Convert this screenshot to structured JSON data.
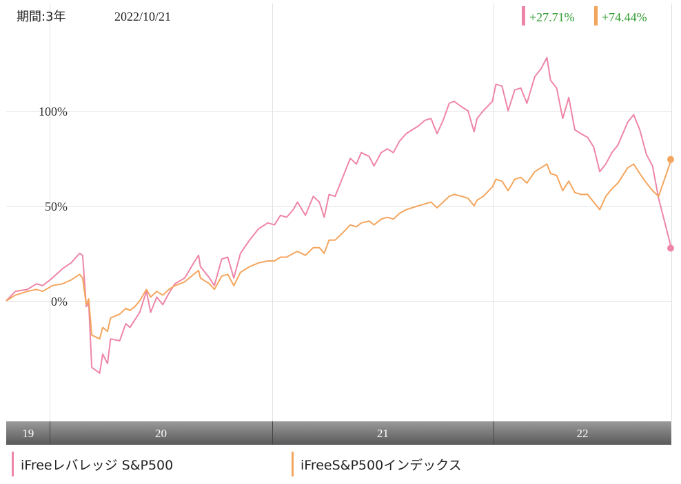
{
  "header": {
    "period_label": "期間:3年",
    "date_label": "2022/10/21",
    "badges": [
      {
        "value": "+27.71%",
        "color": "#ef85a6",
        "text_color": "#2e9a2e"
      },
      {
        "value": "+74.44%",
        "color": "#f4a55d",
        "text_color": "#2e9a2e"
      }
    ]
  },
  "legend": [
    {
      "name": "iFreeレバレッジ S&P500",
      "color": "#ef85a6"
    },
    {
      "name": "iFreeS&P500インデックス",
      "color": "#f4a55d"
    }
  ],
  "chart_data": {
    "type": "line",
    "ylim": [
      -65,
      147
    ],
    "y_ticks": [
      {
        "value": 0,
        "label": "0%"
      },
      {
        "value": 50,
        "label": "50%"
      },
      {
        "value": 100,
        "label": "100%"
      }
    ],
    "x_range": [
      "2019-10-21",
      "2022-10-21"
    ],
    "x_year_labels": [
      "19",
      "20",
      "21",
      "22"
    ],
    "grid": true,
    "series": [
      {
        "name": "iFreeレバレッジ S&P500",
        "color": "#ef85a6",
        "end_value": 27.71,
        "points": [
          [
            "2019-10-21",
            0
          ],
          [
            "2019-11-05",
            5
          ],
          [
            "2019-11-25",
            6
          ],
          [
            "2019-12-10",
            9
          ],
          [
            "2019-12-20",
            8
          ],
          [
            "2020-01-05",
            12
          ],
          [
            "2020-01-22",
            17
          ],
          [
            "2020-02-05",
            20
          ],
          [
            "2020-02-19",
            25
          ],
          [
            "2020-02-24",
            24
          ],
          [
            "2020-03-01",
            -3
          ],
          [
            "2020-03-05",
            -1
          ],
          [
            "2020-03-10",
            -35
          ],
          [
            "2020-03-23",
            -38
          ],
          [
            "2020-03-28",
            -28
          ],
          [
            "2020-04-05",
            -33
          ],
          [
            "2020-04-10",
            -20
          ],
          [
            "2020-04-25",
            -21
          ],
          [
            "2020-05-05",
            -12
          ],
          [
            "2020-05-12",
            -14
          ],
          [
            "2020-05-20",
            -10
          ],
          [
            "2020-05-28",
            -6
          ],
          [
            "2020-06-08",
            5
          ],
          [
            "2020-06-15",
            -6
          ],
          [
            "2020-06-25",
            2
          ],
          [
            "2020-07-05",
            -2
          ],
          [
            "2020-07-15",
            4
          ],
          [
            "2020-07-25",
            9
          ],
          [
            "2020-08-10",
            12
          ],
          [
            "2020-08-25",
            20
          ],
          [
            "2020-09-02",
            24
          ],
          [
            "2020-09-05",
            18
          ],
          [
            "2020-09-20",
            12
          ],
          [
            "2020-09-28",
            8
          ],
          [
            "2020-10-10",
            22
          ],
          [
            "2020-10-20",
            23
          ],
          [
            "2020-10-30",
            12
          ],
          [
            "2020-11-10",
            25
          ],
          [
            "2020-11-25",
            32
          ],
          [
            "2020-12-10",
            38
          ],
          [
            "2020-12-25",
            41
          ],
          [
            "2021-01-05",
            40
          ],
          [
            "2021-01-15",
            45
          ],
          [
            "2021-01-25",
            44
          ],
          [
            "2021-02-05",
            48
          ],
          [
            "2021-02-12",
            52
          ],
          [
            "2021-02-25",
            45
          ],
          [
            "2021-03-10",
            55
          ],
          [
            "2021-03-20",
            52
          ],
          [
            "2021-03-28",
            44
          ],
          [
            "2021-04-05",
            56
          ],
          [
            "2021-04-15",
            55
          ],
          [
            "2021-04-25",
            63
          ],
          [
            "2021-05-10",
            75
          ],
          [
            "2021-05-20",
            72
          ],
          [
            "2021-05-28",
            78
          ],
          [
            "2021-06-10",
            76
          ],
          [
            "2021-06-18",
            71
          ],
          [
            "2021-06-30",
            78
          ],
          [
            "2021-07-10",
            80
          ],
          [
            "2021-07-20",
            78
          ],
          [
            "2021-07-30",
            84
          ],
          [
            "2021-08-10",
            88
          ],
          [
            "2021-08-20",
            90
          ],
          [
            "2021-08-30",
            92
          ],
          [
            "2021-09-10",
            95
          ],
          [
            "2021-09-20",
            96
          ],
          [
            "2021-09-30",
            88
          ],
          [
            "2021-10-10",
            95
          ],
          [
            "2021-10-20",
            104
          ],
          [
            "2021-10-28",
            105
          ],
          [
            "2021-11-10",
            102
          ],
          [
            "2021-11-20",
            100
          ],
          [
            "2021-11-30",
            89
          ],
          [
            "2021-12-05",
            96
          ],
          [
            "2021-12-15",
            100
          ],
          [
            "2021-12-30",
            105
          ],
          [
            "2022-01-05",
            114
          ],
          [
            "2022-01-15",
            113
          ],
          [
            "2022-01-25",
            100
          ],
          [
            "2022-02-05",
            111
          ],
          [
            "2022-02-15",
            112
          ],
          [
            "2022-02-25",
            104
          ],
          [
            "2022-03-10",
            118
          ],
          [
            "2022-03-20",
            122
          ],
          [
            "2022-03-30",
            128
          ],
          [
            "2022-04-05",
            116
          ],
          [
            "2022-04-15",
            112
          ],
          [
            "2022-04-25",
            96
          ],
          [
            "2022-05-05",
            107
          ],
          [
            "2022-05-15",
            90
          ],
          [
            "2022-05-25",
            88
          ],
          [
            "2022-06-05",
            86
          ],
          [
            "2022-06-15",
            81
          ],
          [
            "2022-06-25",
            68
          ],
          [
            "2022-07-05",
            72
          ],
          [
            "2022-07-15",
            78
          ],
          [
            "2022-07-25",
            82
          ],
          [
            "2022-08-10",
            94
          ],
          [
            "2022-08-20",
            98
          ],
          [
            "2022-08-30",
            90
          ],
          [
            "2022-09-10",
            77
          ],
          [
            "2022-09-20",
            71
          ],
          [
            "2022-09-30",
            54
          ],
          [
            "2022-10-21",
            27.71
          ]
        ]
      },
      {
        "name": "iFreeS&P500インデックス",
        "color": "#f4a55d",
        "end_value": 74.44,
        "points": [
          [
            "2019-10-21",
            0
          ],
          [
            "2019-11-05",
            3
          ],
          [
            "2019-11-25",
            5
          ],
          [
            "2019-12-10",
            6
          ],
          [
            "2019-12-20",
            5
          ],
          [
            "2020-01-05",
            8
          ],
          [
            "2020-01-22",
            9
          ],
          [
            "2020-02-05",
            11
          ],
          [
            "2020-02-19",
            14
          ],
          [
            "2020-02-24",
            12
          ],
          [
            "2020-03-01",
            -2
          ],
          [
            "2020-03-05",
            1
          ],
          [
            "2020-03-10",
            -18
          ],
          [
            "2020-03-23",
            -20
          ],
          [
            "2020-03-28",
            -14
          ],
          [
            "2020-04-05",
            -16
          ],
          [
            "2020-04-10",
            -9
          ],
          [
            "2020-04-25",
            -7
          ],
          [
            "2020-05-05",
            -4
          ],
          [
            "2020-05-12",
            -5
          ],
          [
            "2020-05-20",
            -3
          ],
          [
            "2020-05-28",
            0
          ],
          [
            "2020-06-08",
            6
          ],
          [
            "2020-06-15",
            2
          ],
          [
            "2020-06-25",
            5
          ],
          [
            "2020-07-05",
            3
          ],
          [
            "2020-07-15",
            6
          ],
          [
            "2020-07-25",
            8
          ],
          [
            "2020-08-10",
            10
          ],
          [
            "2020-08-25",
            14
          ],
          [
            "2020-09-02",
            16
          ],
          [
            "2020-09-05",
            12
          ],
          [
            "2020-09-20",
            9
          ],
          [
            "2020-09-28",
            6
          ],
          [
            "2020-10-10",
            13
          ],
          [
            "2020-10-20",
            14
          ],
          [
            "2020-10-30",
            8
          ],
          [
            "2020-11-10",
            15
          ],
          [
            "2020-11-25",
            18
          ],
          [
            "2020-12-10",
            20
          ],
          [
            "2020-12-25",
            21
          ],
          [
            "2021-01-05",
            21
          ],
          [
            "2021-01-15",
            23
          ],
          [
            "2021-01-25",
            23
          ],
          [
            "2021-02-05",
            25
          ],
          [
            "2021-02-12",
            26
          ],
          [
            "2021-02-25",
            24
          ],
          [
            "2021-03-10",
            28
          ],
          [
            "2021-03-20",
            28
          ],
          [
            "2021-03-28",
            25
          ],
          [
            "2021-04-05",
            32
          ],
          [
            "2021-04-15",
            32
          ],
          [
            "2021-04-25",
            35
          ],
          [
            "2021-05-10",
            40
          ],
          [
            "2021-05-20",
            39
          ],
          [
            "2021-05-28",
            41
          ],
          [
            "2021-06-10",
            42
          ],
          [
            "2021-06-18",
            40
          ],
          [
            "2021-06-30",
            43
          ],
          [
            "2021-07-10",
            44
          ],
          [
            "2021-07-20",
            43
          ],
          [
            "2021-07-30",
            46
          ],
          [
            "2021-08-10",
            48
          ],
          [
            "2021-08-20",
            49
          ],
          [
            "2021-08-30",
            50
          ],
          [
            "2021-09-10",
            51
          ],
          [
            "2021-09-20",
            52
          ],
          [
            "2021-09-30",
            49
          ],
          [
            "2021-10-10",
            52
          ],
          [
            "2021-10-20",
            55
          ],
          [
            "2021-10-28",
            56
          ],
          [
            "2021-11-10",
            55
          ],
          [
            "2021-11-20",
            54
          ],
          [
            "2021-11-30",
            50
          ],
          [
            "2021-12-05",
            53
          ],
          [
            "2021-12-15",
            55
          ],
          [
            "2021-12-30",
            60
          ],
          [
            "2022-01-05",
            64
          ],
          [
            "2022-01-15",
            63
          ],
          [
            "2022-01-25",
            58
          ],
          [
            "2022-02-05",
            64
          ],
          [
            "2022-02-15",
            65
          ],
          [
            "2022-02-25",
            62
          ],
          [
            "2022-03-10",
            68
          ],
          [
            "2022-03-20",
            70
          ],
          [
            "2022-03-30",
            72
          ],
          [
            "2022-04-05",
            67
          ],
          [
            "2022-04-15",
            66
          ],
          [
            "2022-04-25",
            58
          ],
          [
            "2022-05-05",
            63
          ],
          [
            "2022-05-15",
            57
          ],
          [
            "2022-05-25",
            56
          ],
          [
            "2022-06-05",
            56
          ],
          [
            "2022-06-15",
            52
          ],
          [
            "2022-06-25",
            48
          ],
          [
            "2022-07-05",
            55
          ],
          [
            "2022-07-15",
            59
          ],
          [
            "2022-07-25",
            62
          ],
          [
            "2022-08-10",
            70
          ],
          [
            "2022-08-20",
            72
          ],
          [
            "2022-08-30",
            67
          ],
          [
            "2022-09-10",
            62
          ],
          [
            "2022-09-20",
            58
          ],
          [
            "2022-09-30",
            55
          ],
          [
            "2022-10-21",
            74.44
          ]
        ]
      }
    ]
  }
}
